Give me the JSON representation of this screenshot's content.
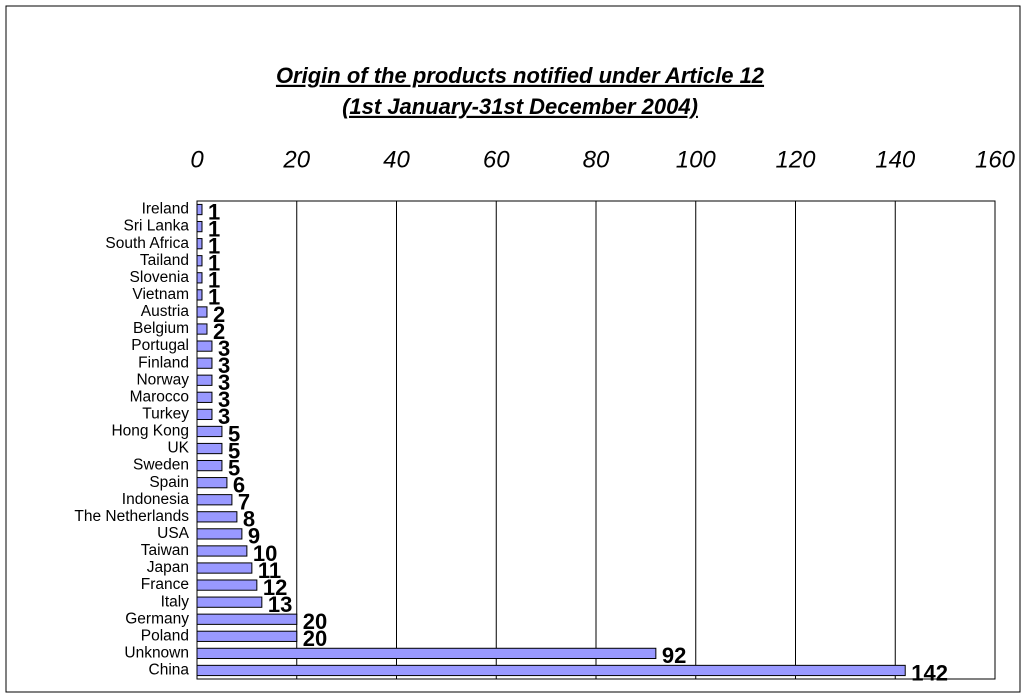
{
  "chart_data": {
    "type": "bar",
    "orientation": "horizontal",
    "title": "Origin of the products notified under Article 12",
    "subtitle": "(1st January-31st December 2004)",
    "categories": [
      "Ireland",
      "Sri Lanka",
      "South Africa",
      "Tailand",
      "Slovenia",
      "Vietnam",
      "Austria",
      "Belgium",
      "Portugal",
      "Finland",
      "Norway",
      "Marocco",
      "Turkey",
      "Hong Kong",
      "UK",
      "Sweden",
      "Spain",
      "Indonesia",
      "The Netherlands",
      "USA",
      "Taiwan",
      "Japan",
      "France",
      "Italy",
      "Germany",
      "Poland",
      "Unknown",
      "China"
    ],
    "values": [
      1,
      1,
      1,
      1,
      1,
      1,
      2,
      2,
      3,
      3,
      3,
      3,
      3,
      5,
      5,
      5,
      6,
      7,
      8,
      9,
      10,
      11,
      12,
      13,
      20,
      20,
      92,
      142
    ],
    "color": "#9999ff",
    "xlim": [
      0,
      160
    ],
    "xticks": [
      0,
      20,
      40,
      60,
      80,
      100,
      120,
      140,
      160
    ],
    "grid": true
  }
}
